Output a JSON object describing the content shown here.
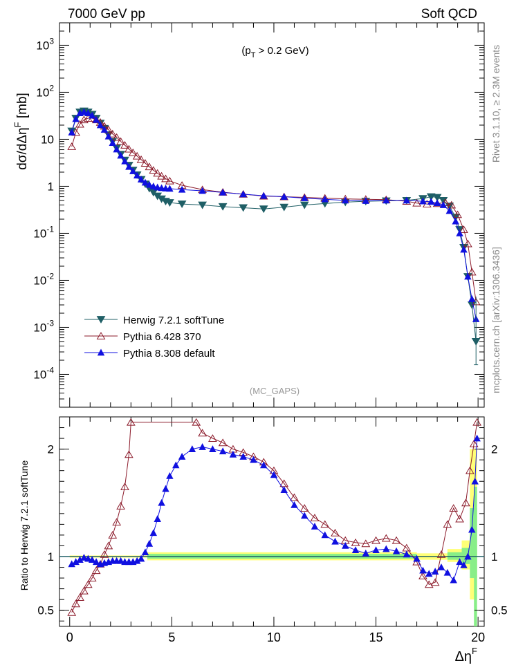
{
  "header": {
    "left": "7000 GeV pp",
    "right": "Soft QCD"
  },
  "side_labels": {
    "rivet": "Rivet 3.1.10, ≥ 2.3M events",
    "source": "mcplots.cern.ch [arXiv:1306.3436]"
  },
  "annotations": {
    "cut": "(p_T > 0.2 GeV)",
    "analysis": "(MC_GAPS)"
  },
  "colors": {
    "herwig": "#1f5f66",
    "pythia6": "#8b1a2a",
    "pythia8": "#1010e0",
    "band_yellow": "#ffff77",
    "band_green": "#88ee88",
    "ratio_line": "#1f5f66"
  },
  "chart_data": [
    {
      "type": "scatter",
      "panel": "main",
      "ylabel": "dσ/dΔη^F [mb]",
      "yscale": "log",
      "ylim": [
        2e-05,
        3000
      ],
      "xlim": [
        -0.5,
        20.3
      ],
      "ytick_labels": [
        "10^3",
        "10^2",
        "10",
        "1",
        "10^-1",
        "10^-2",
        "10^-3",
        "10^-4"
      ],
      "legend_position": "lower-left",
      "series": [
        {
          "name": "Herwig 7.2.1 softTune",
          "marker": "triangle-down-filled",
          "points": [
            [
              0.1,
              15
            ],
            [
              0.3,
              28
            ],
            [
              0.5,
              38
            ],
            [
              0.7,
              40
            ],
            [
              0.9,
              38
            ],
            [
              1.1,
              34
            ],
            [
              1.3,
              28
            ],
            [
              1.5,
              22
            ],
            [
              1.7,
              17
            ],
            [
              1.9,
              12.5
            ],
            [
              2.1,
              9
            ],
            [
              2.3,
              6.5
            ],
            [
              2.5,
              4.8
            ],
            [
              2.7,
              3.6
            ],
            [
              2.9,
              2.8
            ],
            [
              3.1,
              2.2
            ],
            [
              3.3,
              1.75
            ],
            [
              3.5,
              1.4
            ],
            [
              3.7,
              1.12
            ],
            [
              3.9,
              0.9
            ],
            [
              4.1,
              0.74
            ],
            [
              4.3,
              0.62
            ],
            [
              4.5,
              0.54
            ],
            [
              4.7,
              0.48
            ],
            [
              4.9,
              0.45
            ],
            [
              5.5,
              0.42
            ],
            [
              6.5,
              0.4
            ],
            [
              7.5,
              0.37
            ],
            [
              8.5,
              0.35
            ],
            [
              9.5,
              0.33
            ],
            [
              10.5,
              0.36
            ],
            [
              11.5,
              0.4
            ],
            [
              12.5,
              0.43
            ],
            [
              13.5,
              0.46
            ],
            [
              14.5,
              0.48
            ],
            [
              15.5,
              0.49
            ],
            [
              16.5,
              0.5
            ],
            [
              17.3,
              0.55
            ],
            [
              17.7,
              0.6
            ],
            [
              18.0,
              0.58
            ],
            [
              18.3,
              0.5
            ],
            [
              18.6,
              0.38
            ],
            [
              18.9,
              0.22
            ],
            [
              19.1,
              0.12
            ],
            [
              19.3,
              0.05
            ],
            [
              19.5,
              0.012
            ],
            [
              19.7,
              0.003
            ],
            [
              19.9,
              0.0005
            ]
          ]
        },
        {
          "name": "Pythia 6.428 370",
          "marker": "triangle-up-open",
          "points": [
            [
              0.1,
              7
            ],
            [
              0.3,
              14
            ],
            [
              0.5,
              21
            ],
            [
              0.7,
              26
            ],
            [
              0.9,
              28
            ],
            [
              1.1,
              28
            ],
            [
              1.3,
              26
            ],
            [
              1.5,
              23
            ],
            [
              1.7,
              19
            ],
            [
              1.9,
              16
            ],
            [
              2.1,
              13
            ],
            [
              2.3,
              11
            ],
            [
              2.5,
              9
            ],
            [
              2.7,
              7.5
            ],
            [
              2.9,
              6.2
            ],
            [
              3.1,
              5.2
            ],
            [
              3.3,
              4.4
            ],
            [
              3.5,
              3.7
            ],
            [
              3.7,
              3.1
            ],
            [
              3.9,
              2.6
            ],
            [
              4.1,
              2.2
            ],
            [
              4.3,
              1.9
            ],
            [
              4.5,
              1.65
            ],
            [
              4.7,
              1.45
            ],
            [
              4.9,
              1.3
            ],
            [
              5.5,
              1.05
            ],
            [
              6.5,
              0.85
            ],
            [
              7.5,
              0.75
            ],
            [
              8.5,
              0.68
            ],
            [
              9.5,
              0.62
            ],
            [
              10.5,
              0.6
            ],
            [
              11.5,
              0.58
            ],
            [
              12.5,
              0.56
            ],
            [
              13.5,
              0.54
            ],
            [
              14.5,
              0.53
            ],
            [
              15.5,
              0.52
            ],
            [
              16.5,
              0.48
            ],
            [
              17.0,
              0.44
            ],
            [
              17.5,
              0.42
            ],
            [
              18.0,
              0.43
            ],
            [
              18.4,
              0.45
            ],
            [
              18.7,
              0.4
            ],
            [
              19.0,
              0.25
            ],
            [
              19.3,
              0.12
            ],
            [
              19.5,
              0.06
            ],
            [
              19.7,
              0.015
            ],
            [
              19.9,
              0.0035
            ]
          ]
        },
        {
          "name": "Pythia 8.308 default",
          "marker": "triangle-up-filled",
          "points": [
            [
              0.1,
              14
            ],
            [
              0.3,
              27
            ],
            [
              0.5,
              36
            ],
            [
              0.7,
              38
            ],
            [
              0.9,
              36
            ],
            [
              1.1,
              32
            ],
            [
              1.3,
              26
            ],
            [
              1.5,
              20
            ],
            [
              1.7,
              16
            ],
            [
              1.9,
              11.5
            ],
            [
              2.1,
              8.4
            ],
            [
              2.3,
              6.1
            ],
            [
              2.5,
              4.5
            ],
            [
              2.7,
              3.4
            ],
            [
              2.9,
              2.6
            ],
            [
              3.1,
              2.1
            ],
            [
              3.3,
              1.7
            ],
            [
              3.5,
              1.4
            ],
            [
              3.7,
              1.2
            ],
            [
              3.9,
              1.08
            ],
            [
              4.1,
              1.0
            ],
            [
              4.3,
              0.95
            ],
            [
              4.5,
              0.92
            ],
            [
              4.7,
              0.9
            ],
            [
              4.9,
              0.89
            ],
            [
              5.5,
              0.85
            ],
            [
              6.5,
              0.8
            ],
            [
              7.5,
              0.74
            ],
            [
              8.5,
              0.68
            ],
            [
              9.5,
              0.63
            ],
            [
              10.5,
              0.6
            ],
            [
              11.5,
              0.56
            ],
            [
              12.5,
              0.53
            ],
            [
              13.5,
              0.5
            ],
            [
              14.5,
              0.49
            ],
            [
              15.5,
              0.5
            ],
            [
              16.5,
              0.5
            ],
            [
              17.3,
              0.48
            ],
            [
              17.7,
              0.47
            ],
            [
              18.0,
              0.44
            ],
            [
              18.3,
              0.4
            ],
            [
              18.6,
              0.3
            ],
            [
              18.9,
              0.18
            ],
            [
              19.1,
              0.1
            ],
            [
              19.3,
              0.045
            ],
            [
              19.5,
              0.012
            ],
            [
              19.7,
              0.004
            ],
            [
              19.9,
              0.0015
            ]
          ]
        }
      ]
    },
    {
      "type": "scatter",
      "panel": "ratio",
      "ylabel": "Ratio to Herwig 7.2.1 softTune",
      "xlabel": "Δη^F",
      "ylim": [
        0.35,
        2.3
      ],
      "xlim": [
        -0.5,
        20.3
      ],
      "xticks": [
        0,
        5,
        10,
        15,
        20
      ],
      "yticks": [
        0.5,
        1,
        2
      ],
      "series": [
        {
          "name": "Pythia 6.428 370",
          "marker": "triangle-up-open",
          "points": [
            [
              0.1,
              0.48
            ],
            [
              0.3,
              0.56
            ],
            [
              0.5,
              0.62
            ],
            [
              0.7,
              0.68
            ],
            [
              0.9,
              0.74
            ],
            [
              1.1,
              0.8
            ],
            [
              1.3,
              0.87
            ],
            [
              1.5,
              0.93
            ],
            [
              1.7,
              1.02
            ],
            [
              1.9,
              1.1
            ],
            [
              2.1,
              1.2
            ],
            [
              2.3,
              1.32
            ],
            [
              2.5,
              1.47
            ],
            [
              2.7,
              1.65
            ],
            [
              2.9,
              1.95
            ],
            [
              3.0,
              2.25
            ],
            [
              6.2,
              2.25
            ],
            [
              6.5,
              2.15
            ],
            [
              7.0,
              2.1
            ],
            [
              7.5,
              2.06
            ],
            [
              8.0,
              2.0
            ],
            [
              8.5,
              1.97
            ],
            [
              9.0,
              1.93
            ],
            [
              9.5,
              1.88
            ],
            [
              10.0,
              1.8
            ],
            [
              10.5,
              1.68
            ],
            [
              11.0,
              1.55
            ],
            [
              11.5,
              1.45
            ],
            [
              12.0,
              1.36
            ],
            [
              12.5,
              1.3
            ],
            [
              13.0,
              1.22
            ],
            [
              13.5,
              1.15
            ],
            [
              14.0,
              1.13
            ],
            [
              14.5,
              1.12
            ],
            [
              15.0,
              1.15
            ],
            [
              15.5,
              1.17
            ],
            [
              16.0,
              1.15
            ],
            [
              16.5,
              1.08
            ],
            [
              17.0,
              0.95
            ],
            [
              17.3,
              0.82
            ],
            [
              17.6,
              0.74
            ],
            [
              17.9,
              0.76
            ],
            [
              18.2,
              1.02
            ],
            [
              18.5,
              1.3
            ],
            [
              18.8,
              1.45
            ],
            [
              19.1,
              1.35
            ],
            [
              19.4,
              1.5
            ],
            [
              19.6,
              1.8
            ],
            [
              19.8,
              2.05
            ],
            [
              19.95,
              2.25
            ]
          ]
        },
        {
          "name": "Pythia 8.308 default",
          "marker": "triangle-up-filled",
          "points": [
            [
              0.1,
              0.93
            ],
            [
              0.3,
              0.95
            ],
            [
              0.5,
              0.97
            ],
            [
              0.7,
              0.99
            ],
            [
              0.9,
              0.98
            ],
            [
              1.1,
              0.97
            ],
            [
              1.3,
              0.95
            ],
            [
              1.5,
              0.93
            ],
            [
              1.7,
              0.94
            ],
            [
              1.9,
              0.95
            ],
            [
              2.1,
              0.96
            ],
            [
              2.3,
              0.96
            ],
            [
              2.5,
              0.96
            ],
            [
              2.7,
              0.95
            ],
            [
              2.9,
              0.95
            ],
            [
              3.1,
              0.95
            ],
            [
              3.3,
              0.96
            ],
            [
              3.5,
              0.98
            ],
            [
              3.7,
              1.04
            ],
            [
              3.9,
              1.12
            ],
            [
              4.1,
              1.22
            ],
            [
              4.3,
              1.35
            ],
            [
              4.5,
              1.5
            ],
            [
              4.7,
              1.63
            ],
            [
              4.9,
              1.75
            ],
            [
              5.2,
              1.85
            ],
            [
              5.5,
              1.93
            ],
            [
              6.0,
              2.0
            ],
            [
              6.5,
              2.02
            ],
            [
              7.0,
              2.0
            ],
            [
              7.5,
              1.98
            ],
            [
              8.0,
              1.95
            ],
            [
              8.5,
              1.93
            ],
            [
              9.0,
              1.9
            ],
            [
              9.5,
              1.85
            ],
            [
              10.0,
              1.76
            ],
            [
              10.5,
              1.62
            ],
            [
              11.0,
              1.48
            ],
            [
              11.5,
              1.38
            ],
            [
              12.0,
              1.28
            ],
            [
              12.5,
              1.2
            ],
            [
              13.0,
              1.14
            ],
            [
              13.5,
              1.1
            ],
            [
              14.0,
              1.06
            ],
            [
              14.5,
              1.03
            ],
            [
              15.0,
              1.06
            ],
            [
              15.5,
              1.07
            ],
            [
              16.0,
              1.05
            ],
            [
              16.5,
              1.02
            ],
            [
              17.0,
              0.98
            ],
            [
              17.3,
              0.87
            ],
            [
              17.6,
              0.84
            ],
            [
              17.9,
              0.86
            ],
            [
              18.2,
              0.9
            ],
            [
              18.5,
              0.85
            ],
            [
              18.8,
              0.78
            ],
            [
              19.1,
              0.95
            ],
            [
              19.3,
              0.92
            ],
            [
              19.5,
              1.0
            ],
            [
              19.7,
              1.25
            ],
            [
              19.85,
              1.7
            ],
            [
              19.95,
              2.1
            ]
          ]
        }
      ]
    }
  ]
}
